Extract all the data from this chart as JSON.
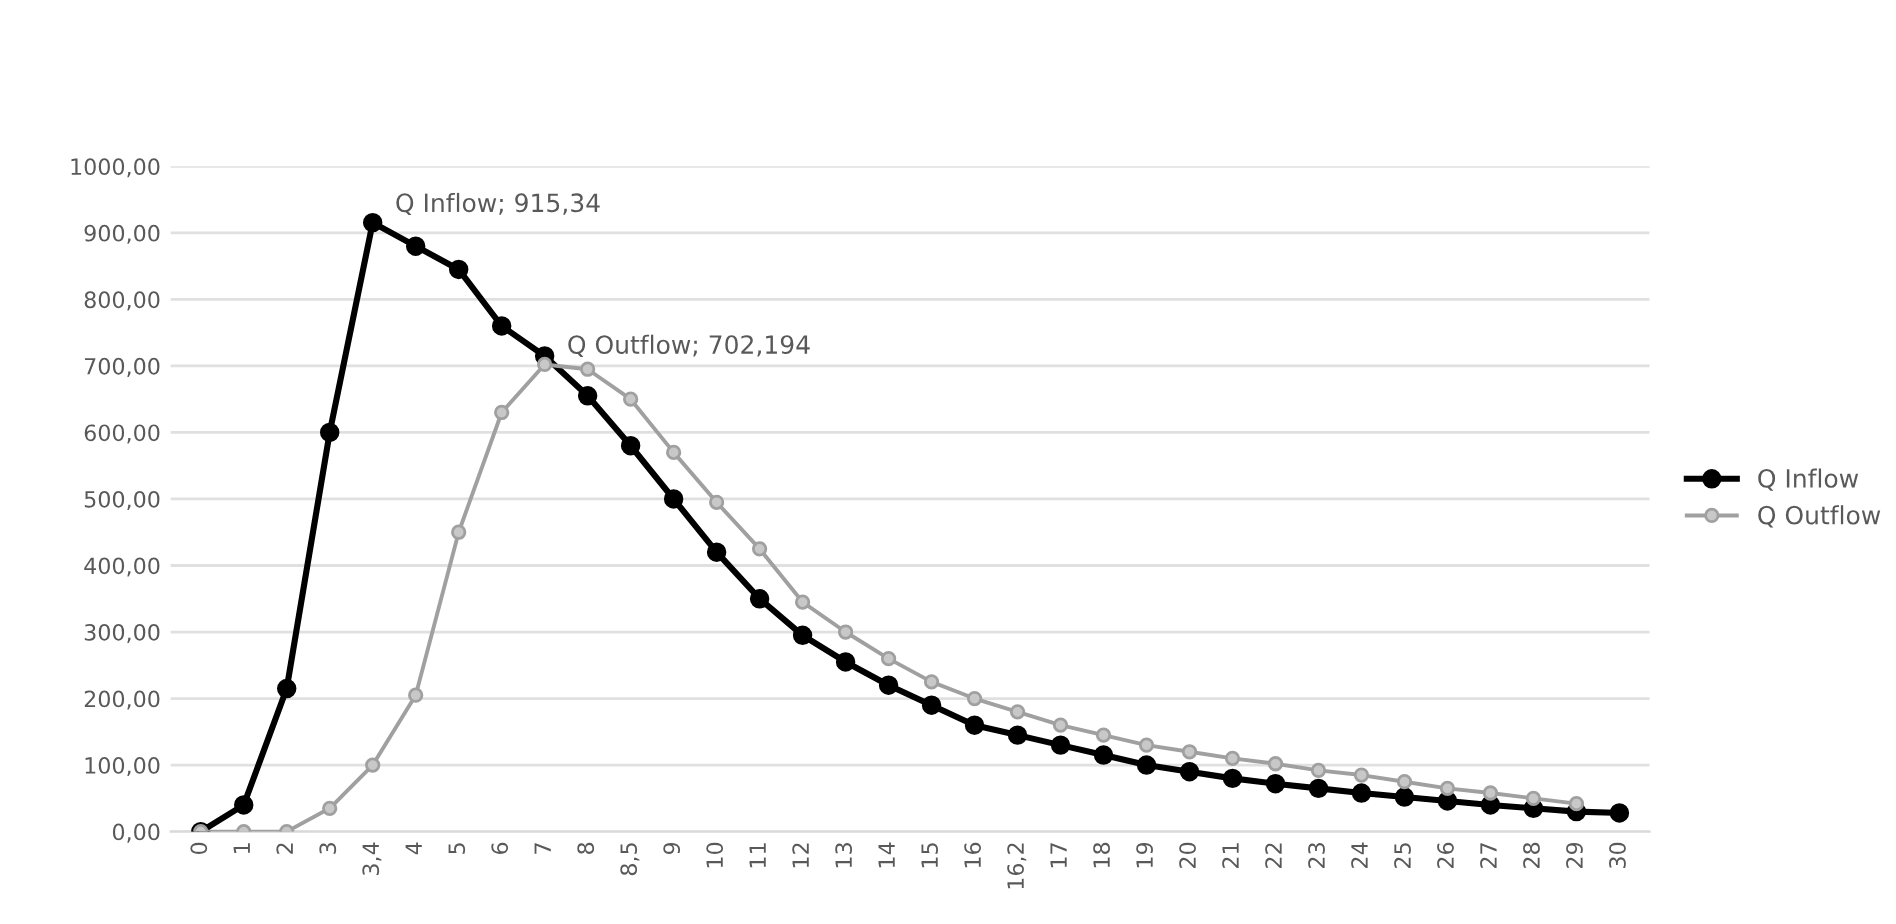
{
  "chart_data": {
    "type": "line",
    "categories": [
      "0",
      "1",
      "2",
      "3",
      "3,4",
      "4",
      "5",
      "6",
      "7",
      "8",
      "8,5",
      "9",
      "10",
      "11",
      "12",
      "13",
      "14",
      "15",
      "16",
      "16,2",
      "17",
      "18",
      "19",
      "20",
      "21",
      "22",
      "23",
      "24",
      "25",
      "26",
      "27",
      "28",
      "29",
      "30"
    ],
    "series": [
      {
        "name": "Q Inflow",
        "color": "#000000",
        "values": [
          0,
          40,
          215,
          600,
          915.34,
          880,
          845,
          760,
          715,
          655,
          580,
          500,
          420,
          350,
          295,
          255,
          220,
          190,
          160,
          145,
          130,
          115,
          100,
          90,
          80,
          72,
          65,
          58,
          52,
          46,
          40,
          35,
          30,
          28
        ]
      },
      {
        "name": "Q Outflow",
        "color": "#a0a0a0",
        "values": [
          0,
          0,
          0,
          35,
          100,
          205,
          450,
          630,
          702.194,
          695,
          650,
          570,
          495,
          425,
          345,
          300,
          260,
          225,
          200,
          180,
          160,
          145,
          130,
          120,
          110,
          102,
          92,
          85,
          75,
          65,
          58,
          50,
          42,
          null
        ]
      }
    ],
    "ylim": [
      0,
      1000
    ],
    "yticks": [
      {
        "value": 0,
        "label": "0,00"
      },
      {
        "value": 100,
        "label": "100,00"
      },
      {
        "value": 200,
        "label": "200,00"
      },
      {
        "value": 300,
        "label": "300,00"
      },
      {
        "value": 400,
        "label": "400,00"
      },
      {
        "value": 500,
        "label": "500,00"
      },
      {
        "value": 600,
        "label": "600,00"
      },
      {
        "value": 700,
        "label": "700,00"
      },
      {
        "value": 800,
        "label": "800,00"
      },
      {
        "value": 900,
        "label": "900,00"
      },
      {
        "value": 1000,
        "label": "1000,00"
      }
    ],
    "annotations": [
      {
        "text": "Q Inflow; 915,34",
        "x": "3,4",
        "y": 915.34
      },
      {
        "text": "Q Outflow; 702,194",
        "x": "7",
        "y": 702.194
      }
    ],
    "grid": "y",
    "legend": "right",
    "marker": "circle",
    "line_style": "solid"
  }
}
